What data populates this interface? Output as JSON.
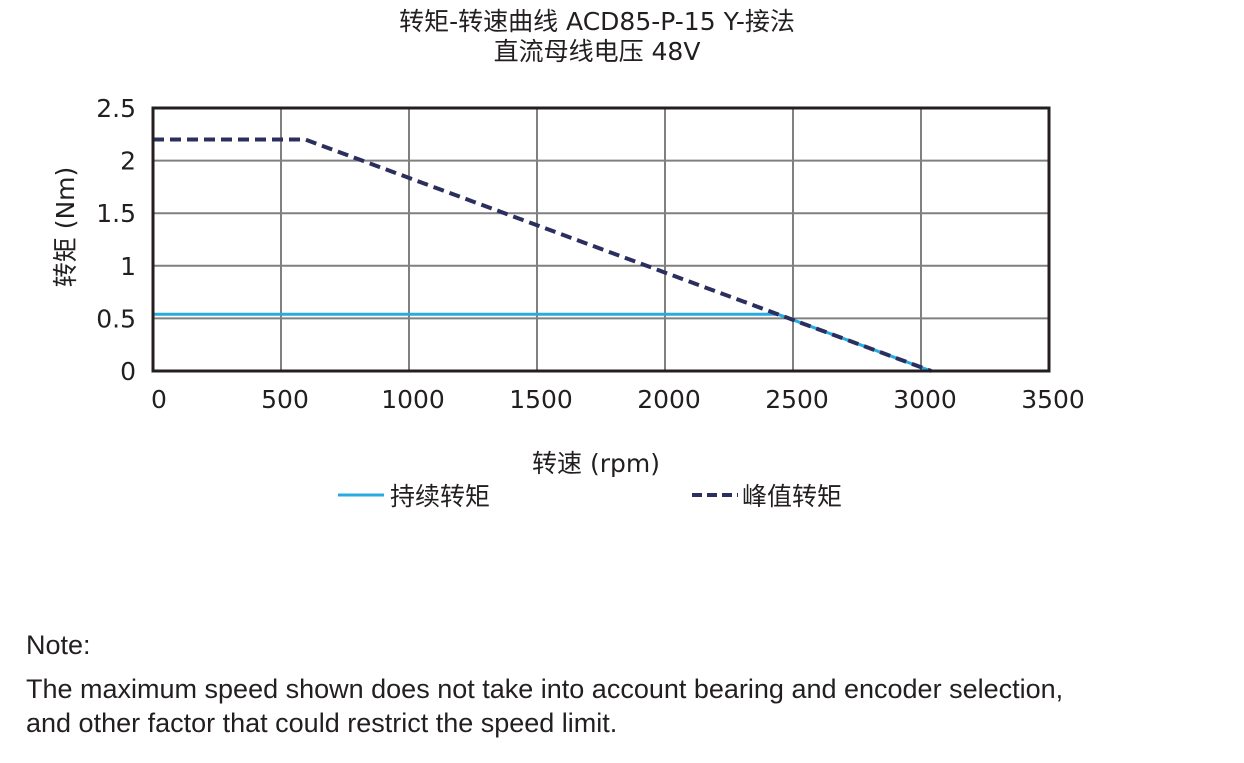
{
  "chart_data": {
    "type": "line",
    "title": "转矩-转速曲线 ACD85-P-15 Y-接法",
    "subtitle": "直流母线电压 48V",
    "xlabel": "转速 (rpm)",
    "ylabel": "转矩 (Nm)",
    "xlim": [
      0,
      3500
    ],
    "ylim": [
      0,
      2.5
    ],
    "xticks": [
      0,
      500,
      1000,
      1500,
      2000,
      2500,
      3000,
      3500
    ],
    "yticks": [
      0,
      0.5,
      1,
      1.5,
      2,
      2.5
    ],
    "xtick_labels": [
      "0",
      "500",
      "1000",
      "1500",
      "2000",
      "2500",
      "3000",
      "3500"
    ],
    "ytick_labels": [
      "0",
      "0.5",
      "1",
      "1.5",
      "2",
      "2.5"
    ],
    "grid": true,
    "legend_position": "bottom",
    "series": [
      {
        "name": "持续转矩",
        "style": "solid",
        "color": "#29abe2",
        "x": [
          0,
          2440,
          3040
        ],
        "y": [
          0.54,
          0.54,
          0
        ]
      },
      {
        "name": "峰值转矩",
        "style": "dashed",
        "color": "#2b2f5e",
        "x": [
          0,
          595,
          3040
        ],
        "y": [
          2.2,
          2.2,
          0
        ]
      }
    ]
  },
  "note": {
    "heading": "Note:",
    "line1": "The maximum speed shown does not take into account bearing and encoder selection,",
    "line2": "and other factor that could restrict the speed limit."
  }
}
